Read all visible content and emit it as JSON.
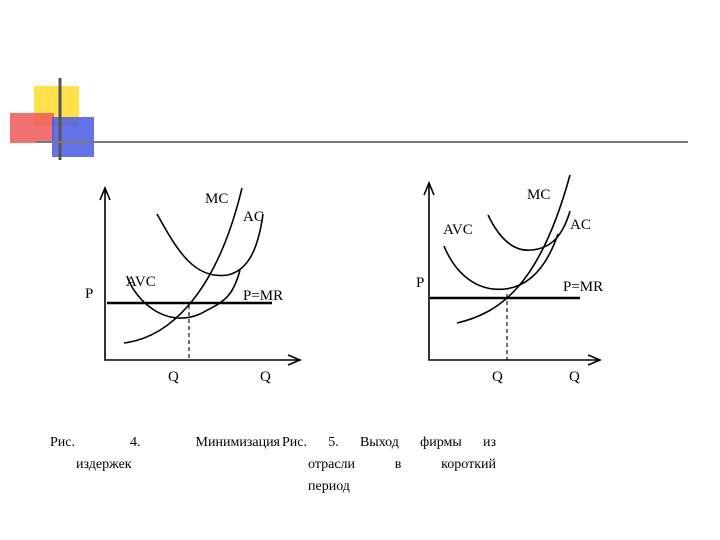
{
  "decoration": {
    "colors": {
      "yellow": "#ffe14d",
      "red": "#f06060",
      "blue": "#4a5ae8",
      "rule": "#7a7a7a"
    }
  },
  "figure4": {
    "labels": {
      "mc": "MC",
      "ac": "AC",
      "avc": "AVC",
      "p": "P",
      "p_mr": "P=MR",
      "q_star": "Q",
      "q_axis": "Q"
    },
    "caption": {
      "line1": "Рис.   4.   Минимизация",
      "line2": "издержек"
    }
  },
  "figure5": {
    "labels": {
      "mc": "MC",
      "ac": "AC",
      "avc": "AVC",
      "p": "P",
      "p_mr": "P=MR",
      "q_star": "Q",
      "q_axis": "Q"
    },
    "caption": {
      "line1": "Рис.  5.  Выход  фирмы  из",
      "line2": "отрасли   в   короткий",
      "line3": "период"
    }
  }
}
